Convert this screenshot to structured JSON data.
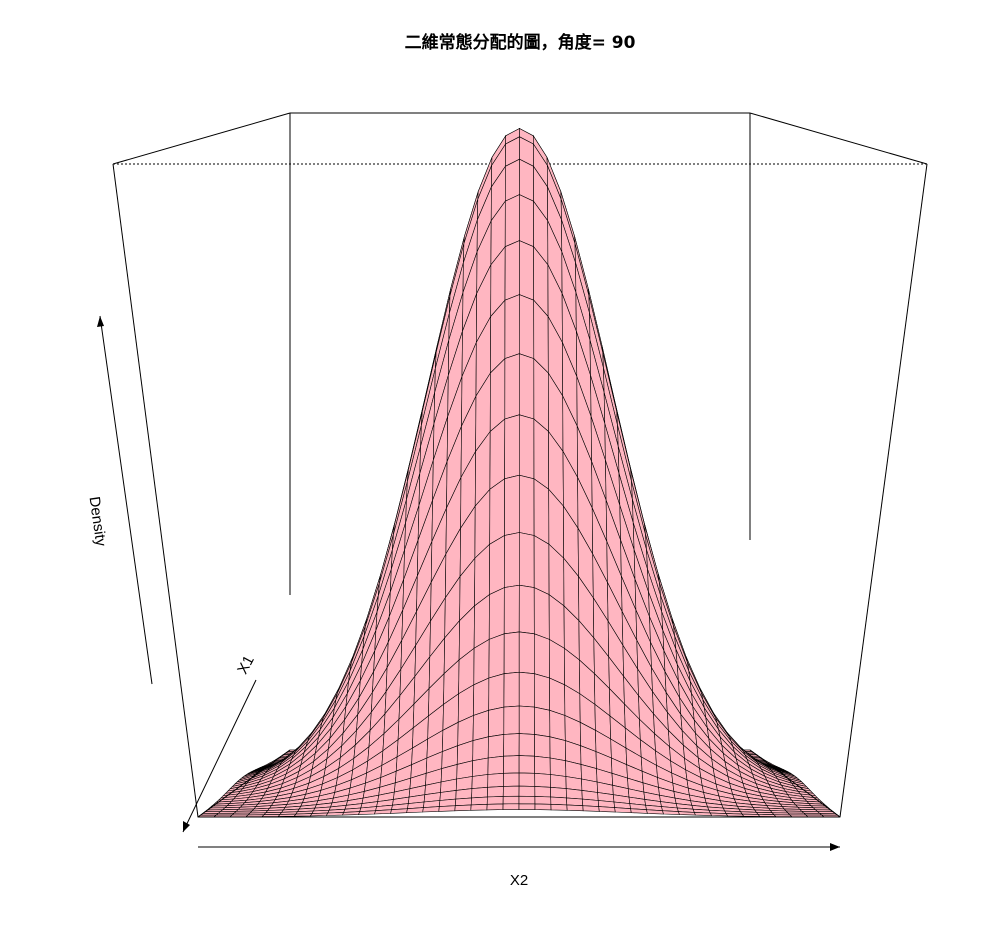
{
  "chart_data": {
    "type": "surface",
    "title": "二維常態分配的圖，角度= 90",
    "xlabel": "X1",
    "ylabel": "X2",
    "zlabel": "Density",
    "theta": 90,
    "surface_color": "#ffb6c1",
    "grid_lines": "#000000",
    "x_range": [
      -3,
      3
    ],
    "y_range": [
      -3,
      3
    ],
    "grid_n": 40,
    "function": "bivariate normal density"
  }
}
